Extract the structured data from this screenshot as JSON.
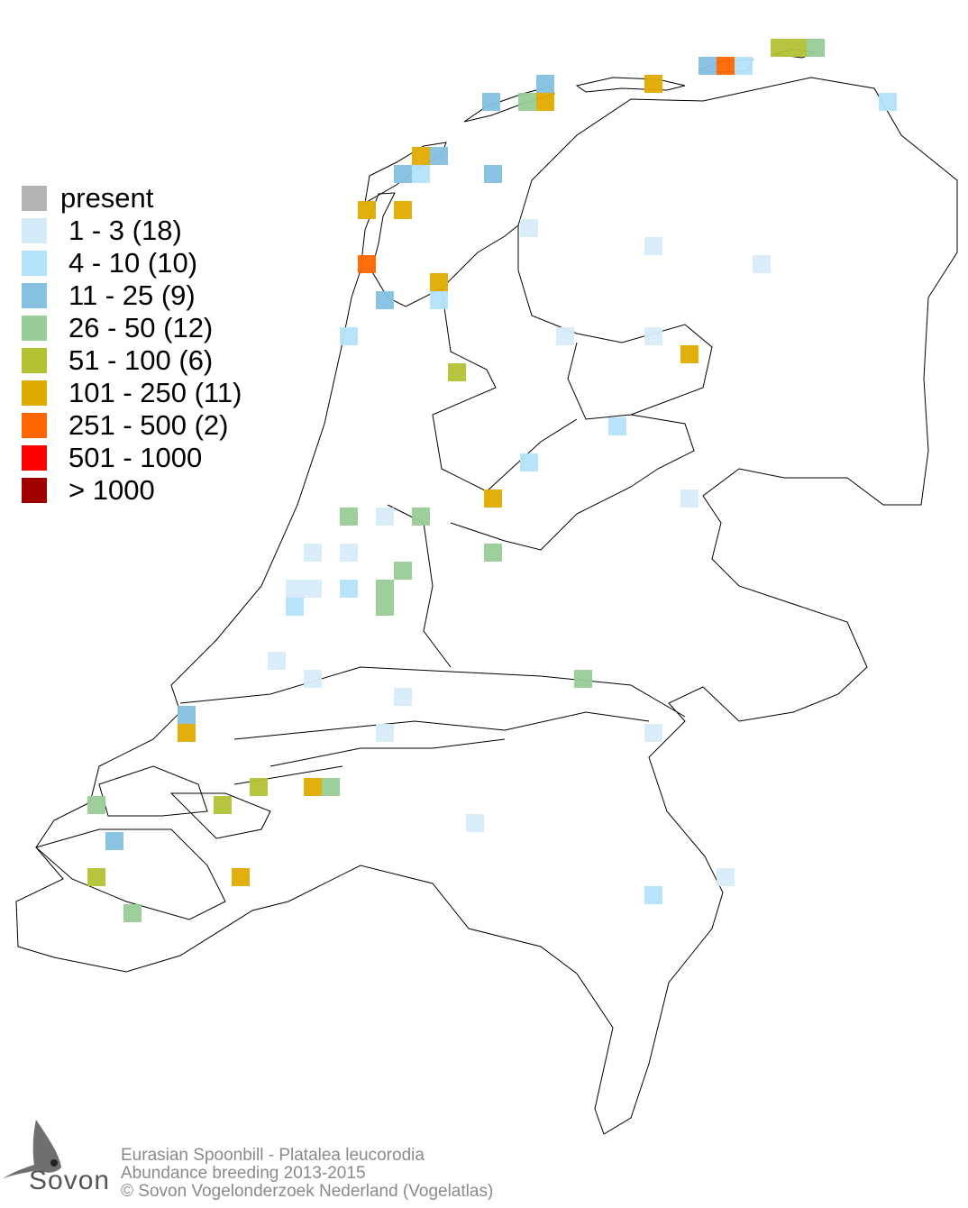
{
  "legend": {
    "items": [
      {
        "label": "present",
        "color": "#b3b3b3"
      },
      {
        "label": "1 - 3 (18)",
        "color": "#d6ebfa"
      },
      {
        "label": "4 - 10 (10)",
        "color": "#b3e3fb"
      },
      {
        "label": "11 - 25 (9)",
        "color": "#85c1e0"
      },
      {
        "label": "26 - 50 (12)",
        "color": "#98cc98"
      },
      {
        "label": "51 - 100 (6)",
        "color": "#b2c233"
      },
      {
        "label": "101 - 250 (11)",
        "color": "#e0ab00"
      },
      {
        "label": "251 - 500 (2)",
        "color": "#ff6600"
      },
      {
        "label": "501 - 1000",
        "color": "#ff0000"
      },
      {
        "label": "> 1000",
        "color": "#a00000"
      }
    ]
  },
  "caption": {
    "species": "Eurasian Spoonbill - Platalea leucorodia",
    "subtitle": "Abundance breeding 2013-2015",
    "copyright": "© Sovon Vogelonderzoek Nederland (Vogelatlas)"
  },
  "logo": {
    "text": "Sovon"
  }
}
